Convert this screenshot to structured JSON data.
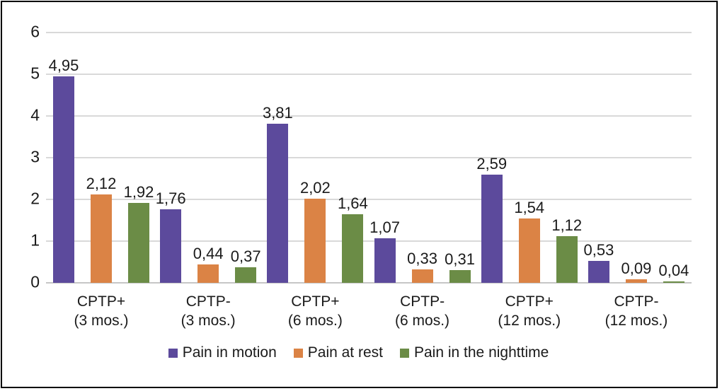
{
  "chart_data": {
    "type": "bar",
    "title": "",
    "xlabel": "",
    "ylabel": "",
    "categories": [
      "CPTP+ (3 mos.)",
      "CPTP- (3 mos.)",
      "CPTP+ (6 mos.)",
      "CPTP- (6 mos.)",
      "CPTP+ (12 mos.)",
      "CPTP- (12 mos.)"
    ],
    "category_lines": [
      [
        "CPTP+",
        "(3 mos.)"
      ],
      [
        "CPTP-",
        "(3 mos.)"
      ],
      [
        "CPTP+",
        "(6 mos.)"
      ],
      [
        "CPTP-",
        "(6 mos.)"
      ],
      [
        "CPTP+",
        "(12 mos.)"
      ],
      [
        "CPTP-",
        "(12 mos.)"
      ]
    ],
    "series": [
      {
        "name": "Pain in motion",
        "color": "#5c4a9c",
        "values": [
          4.95,
          1.76,
          3.81,
          1.07,
          2.59,
          0.53
        ],
        "value_labels": [
          "4,95",
          "1,76",
          "3,81",
          "1,07",
          "2,59",
          "0,53"
        ]
      },
      {
        "name": "Pain at rest",
        "color": "#db8345",
        "values": [
          2.12,
          0.44,
          2.02,
          0.33,
          1.54,
          0.09
        ],
        "value_labels": [
          "2,12",
          "0,44",
          "2,02",
          "0,33",
          "1,54",
          "0,09"
        ]
      },
      {
        "name": "Pain in the nighttime",
        "color": "#6b8c46",
        "values": [
          1.92,
          0.37,
          1.64,
          0.31,
          1.12,
          0.04
        ],
        "value_labels": [
          "1,92",
          "0,37",
          "1,64",
          "0,31",
          "1,12",
          "0,04"
        ]
      }
    ],
    "y_axis": {
      "min": 0,
      "max": 6,
      "ticks": [
        0,
        1,
        2,
        3,
        4,
        5,
        6
      ]
    },
    "grid": true,
    "legend_position": "bottom",
    "decimal_separator": ",",
    "colors": {
      "gridline": "#d9d9d9",
      "axis_baseline": "#c6c6c6",
      "text": "#1a1a1a",
      "frame_border": "#000000",
      "background": "#ffffff"
    }
  }
}
